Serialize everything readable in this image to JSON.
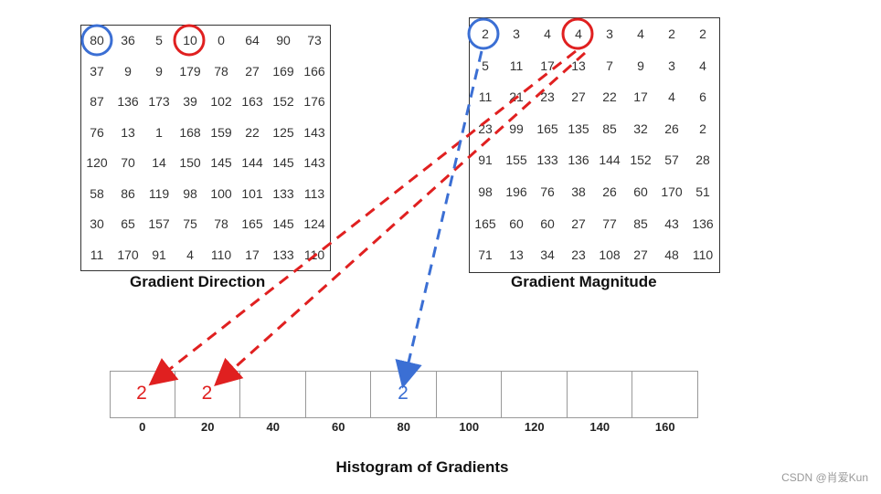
{
  "direction": {
    "label": "Gradient Direction",
    "rows": [
      [
        "80",
        "36",
        "5",
        "10",
        "0",
        "64",
        "90",
        "73"
      ],
      [
        "37",
        "9",
        "9",
        "179",
        "78",
        "27",
        "169",
        "166"
      ],
      [
        "87",
        "136",
        "173",
        "39",
        "102",
        "163",
        "152",
        "176"
      ],
      [
        "76",
        "13",
        "1",
        "168",
        "159",
        "22",
        "125",
        "143"
      ],
      [
        "120",
        "70",
        "14",
        "150",
        "145",
        "144",
        "145",
        "143"
      ],
      [
        "58",
        "86",
        "119",
        "98",
        "100",
        "101",
        "133",
        "113"
      ],
      [
        "30",
        "65",
        "157",
        "75",
        "78",
        "165",
        "145",
        "124"
      ],
      [
        "11",
        "170",
        "91",
        "4",
        "110",
        "17",
        "133",
        "110"
      ]
    ]
  },
  "magnitude": {
    "label": "Gradient Magnitude",
    "rows": [
      [
        "2",
        "3",
        "4",
        "4",
        "3",
        "4",
        "2",
        "2"
      ],
      [
        "5",
        "11",
        "17",
        "13",
        "7",
        "9",
        "3",
        "4"
      ],
      [
        "11",
        "21",
        "23",
        "27",
        "22",
        "17",
        "4",
        "6"
      ],
      [
        "23",
        "99",
        "165",
        "135",
        "85",
        "32",
        "26",
        "2"
      ],
      [
        "91",
        "155",
        "133",
        "136",
        "144",
        "152",
        "57",
        "28"
      ],
      [
        "98",
        "196",
        "76",
        "38",
        "26",
        "60",
        "170",
        "51"
      ],
      [
        "165",
        "60",
        "60",
        "27",
        "77",
        "85",
        "43",
        "136"
      ],
      [
        "71",
        "13",
        "34",
        "23",
        "108",
        "27",
        "48",
        "110"
      ]
    ]
  },
  "histogram": {
    "title": "Histogram of Gradients",
    "bins": [
      "0",
      "20",
      "40",
      "60",
      "80",
      "100",
      "120",
      "140",
      "160"
    ],
    "values": [
      "2",
      "2",
      "",
      "",
      "2",
      "",
      "",
      "",
      ""
    ],
    "value_colors": [
      "#e02020",
      "#e02020",
      "",
      "",
      "#3b6fd4",
      "",
      "",
      "",
      ""
    ]
  },
  "colors": {
    "red": "#e02020",
    "blue": "#3b6fd4"
  },
  "watermark": "CSDN @肖爱Kun"
}
